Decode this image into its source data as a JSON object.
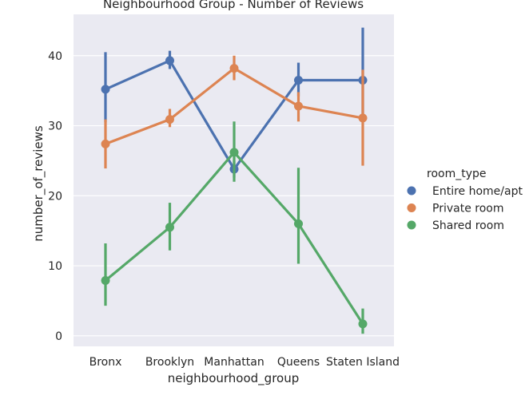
{
  "chart_data": {
    "type": "line",
    "title": "Neighbourhood Group - Number of Reviews",
    "xlabel": "neighbourhood_group",
    "ylabel": "number_of_reviews",
    "categories": [
      "Bronx",
      "Brooklyn",
      "Manhattan",
      "Queens",
      "Staten Island"
    ],
    "ylim": [
      -1.5,
      45.9
    ],
    "yticks": [
      0,
      10,
      20,
      30,
      40
    ],
    "grid": true,
    "legend": {
      "title": "room_type",
      "placement": "right"
    },
    "series": [
      {
        "name": "Entire home/apt",
        "color": "#4c72b0",
        "values": [
          35.2,
          39.3,
          23.8,
          36.5,
          36.5
        ],
        "ci_low": [
          30.5,
          38.1,
          22.6,
          34.2,
          30.8
        ],
        "ci_high": [
          40.5,
          40.7,
          25.0,
          39.0,
          44.0
        ]
      },
      {
        "name": "Private room",
        "color": "#dd8452",
        "values": [
          27.4,
          30.9,
          38.2,
          32.8,
          31.1
        ],
        "ci_low": [
          23.9,
          29.8,
          36.5,
          30.6,
          24.3
        ],
        "ci_high": [
          30.9,
          32.4,
          40.0,
          34.8,
          38.0
        ]
      },
      {
        "name": "Shared room",
        "color": "#55a868",
        "values": [
          7.9,
          15.5,
          26.2,
          16.0,
          1.7
        ],
        "ci_low": [
          4.3,
          12.2,
          22.0,
          10.3,
          0.3
        ],
        "ci_high": [
          13.2,
          19.0,
          30.6,
          24.0,
          3.9
        ]
      }
    ]
  }
}
